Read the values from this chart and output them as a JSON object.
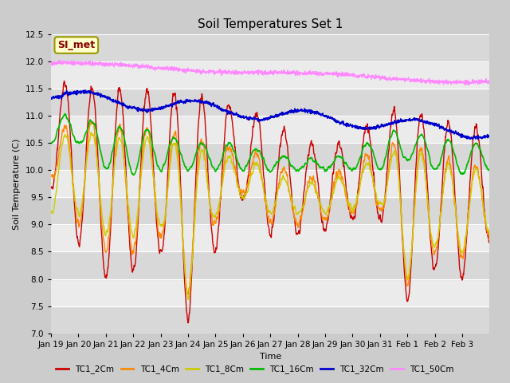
{
  "title": "Soil Temperatures Set 1",
  "xlabel": "Time",
  "ylabel": "Soil Temperature (C)",
  "ylim": [
    7.0,
    12.5
  ],
  "yticks": [
    7.0,
    7.5,
    8.0,
    8.5,
    9.0,
    9.5,
    10.0,
    10.5,
    11.0,
    11.5,
    12.0,
    12.5
  ],
  "series": {
    "TC1_2Cm": {
      "color": "#cc0000",
      "lw": 1.0
    },
    "TC1_4Cm": {
      "color": "#ff8800",
      "lw": 1.0
    },
    "TC1_8Cm": {
      "color": "#cccc00",
      "lw": 1.0
    },
    "TC1_16Cm": {
      "color": "#00bb00",
      "lw": 1.2
    },
    "TC1_32Cm": {
      "color": "#0000cc",
      "lw": 1.2
    },
    "TC1_50Cm": {
      "color": "#ff88ff",
      "lw": 1.0
    }
  },
  "annotation_text": "SI_met",
  "annotation_bg": "#ffffcc",
  "annotation_border": "#999900",
  "num_days": 16,
  "n_points": 1600,
  "x_tick_labels": [
    "Jan 19",
    "Jan 20",
    "Jan 21",
    "Jan 22",
    "Jan 23",
    "Jan 24",
    "Jan 25",
    "Jan 26",
    "Jan 27",
    "Jan 28",
    "Jan 29",
    "Jan 30",
    "Jan 31",
    "Feb 1",
    "Feb 2",
    "Feb 3"
  ],
  "title_fontsize": 11,
  "axis_fontsize": 8,
  "tick_fontsize": 7.5
}
